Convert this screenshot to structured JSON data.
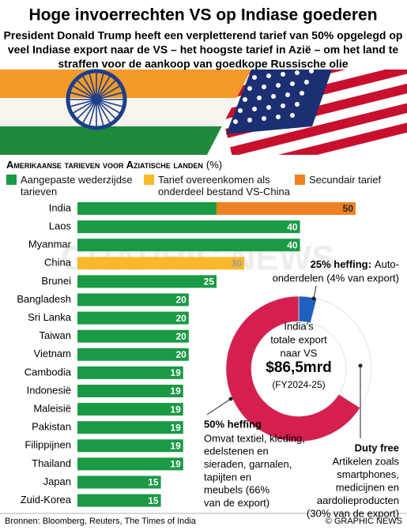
{
  "header": {
    "title": "Hoge invoerrechten VS op Indiase goederen",
    "subtitle": [
      "President Donald Trump heeft een verpletterend tarief van 50% opgelegd op",
      "veel Indiase export naar de VS – het hoogste tarief in Azië – om het land te",
      "straffen voor de aankoop van goedkope Russische olie"
    ]
  },
  "chart_data": [
    {
      "type": "bar",
      "title": "Amerikaanse tarieven voor Aziatische landen",
      "unit": "(%)",
      "categories": [
        "India",
        "Laos",
        "Myanmar",
        "China",
        "Brunei",
        "Bangladesh",
        "Sri Lanka",
        "Taiwan",
        "Vietnam",
        "Cambodia",
        "Indonesië",
        "Maleisië",
        "Pakistan",
        "Filippijnen",
        "Thailand",
        "Japan",
        "Zuid-Korea"
      ],
      "series": [
        {
          "name": "Aangepaste wederzijdse tarieven",
          "color": "#1a9a44",
          "values": [
            25,
            40,
            40,
            null,
            25,
            20,
            20,
            20,
            20,
            19,
            19,
            19,
            19,
            19,
            19,
            15,
            15
          ]
        },
        {
          "name": "Tarief overeenkomen als onderdeel bestand VS-China",
          "color": "#f9b82a",
          "values": [
            null,
            null,
            null,
            30,
            null,
            null,
            null,
            null,
            null,
            null,
            null,
            null,
            null,
            null,
            null,
            null,
            null
          ]
        },
        {
          "name": "Secundair tarief",
          "color": "#f08122",
          "values": [
            25,
            null,
            null,
            null,
            null,
            null,
            null,
            null,
            null,
            null,
            null,
            null,
            null,
            null,
            null,
            null,
            null
          ]
        }
      ],
      "totals": [
        50,
        40,
        40,
        30,
        25,
        20,
        20,
        20,
        20,
        19,
        19,
        19,
        19,
        19,
        19,
        15,
        15
      ],
      "xlim": [
        0,
        50
      ]
    },
    {
      "type": "pie",
      "center_lines": [
        "India's",
        "totale export",
        "naar VS"
      ],
      "amount": "$86,5mrd",
      "period": "(FY2024-25)",
      "categories": [
        "25% heffing:",
        "Duty free",
        "50% heffing"
      ],
      "values": [
        4,
        30,
        66
      ],
      "colors": [
        "#1f5fbf",
        "#ffffff",
        "#d41f4f"
      ],
      "descriptions": [
        [
          "Auto-",
          "onderdelen (4% van export)"
        ],
        [
          "Artikelen zoals",
          "smartphones,",
          "medicijnen en",
          "aardolieproducten",
          "(30% van de export)"
        ],
        [
          "Omvat textiel, kleding,",
          "edelstenen en",
          "sieraden, garnalen,",
          "tapijten en",
          "meubels (66%",
          "van de export)"
        ]
      ]
    }
  ],
  "watermark": "GRAPHIC NEWS",
  "footer": {
    "source": "Bronnen: Bloomberg, Reuters, The Times of India",
    "credit": "© GRAPHIC NEWS"
  }
}
